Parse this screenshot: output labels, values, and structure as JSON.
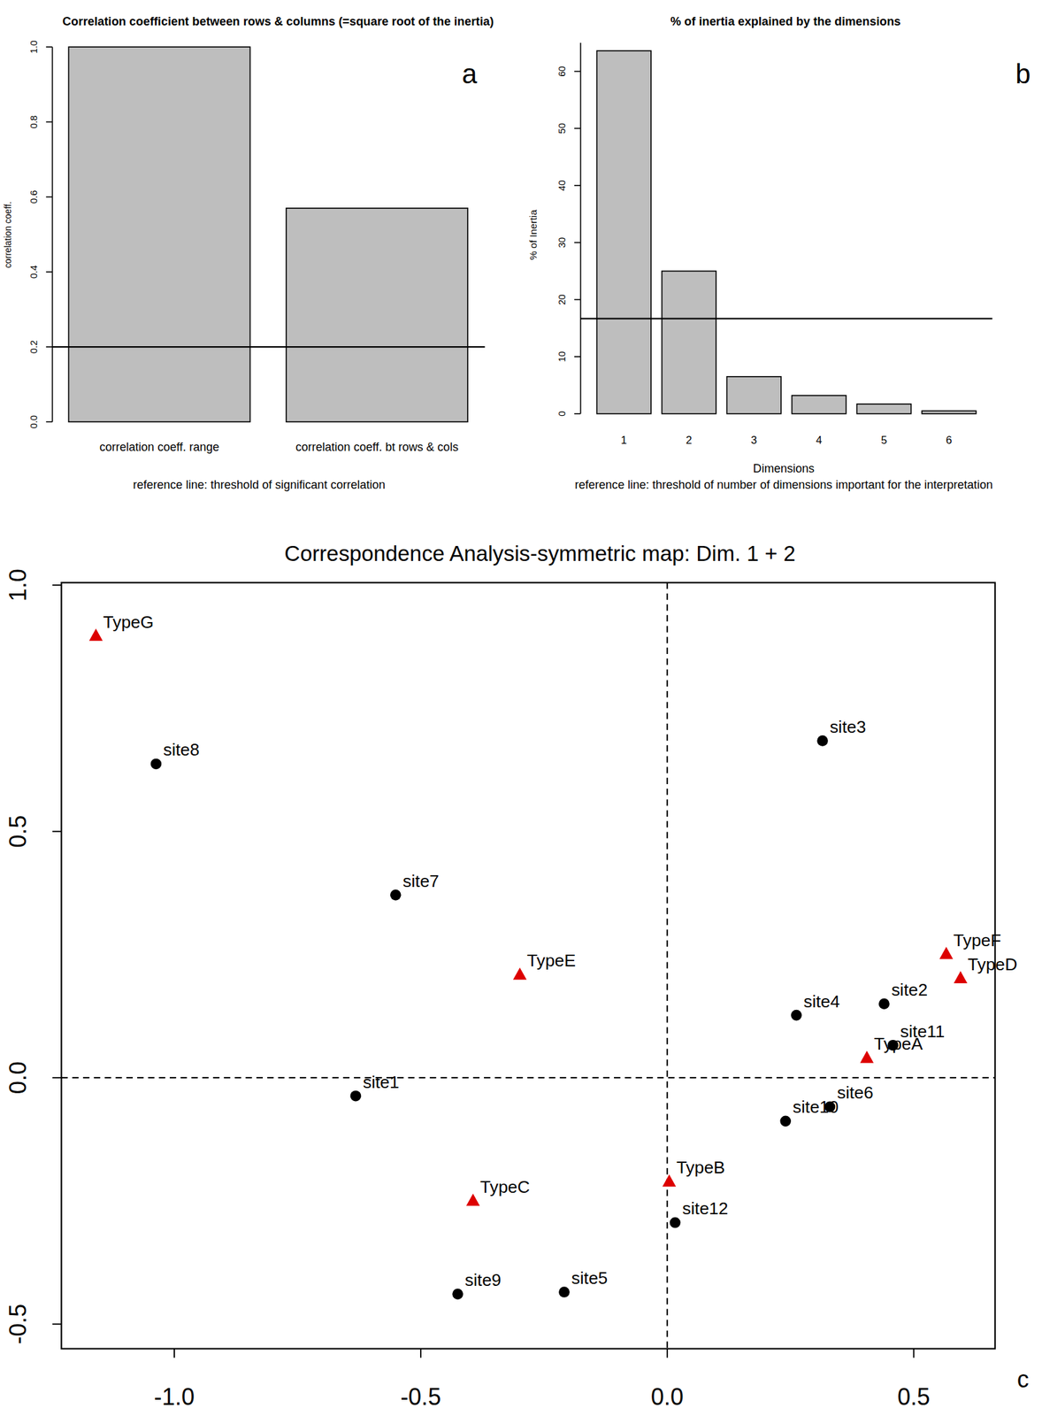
{
  "chart_data": [
    {
      "type": "bar",
      "title": "Correlation coefficient between rows & columns (=square root of the inertia)",
      "y_label": "correlation coeff.",
      "categories": [
        "correlation coeff. range",
        "correlation coeff. bt rows & cols"
      ],
      "values": [
        1.0,
        0.57
      ],
      "color": "#bebebe",
      "ylim": [
        0,
        1.0
      ],
      "yticks": [
        {
          "value": 0,
          "label": "0.0"
        },
        {
          "value": 0.2,
          "label": "0.2"
        },
        {
          "value": 0.4,
          "label": "0.4"
        },
        {
          "value": 0.6,
          "label": "0.6"
        },
        {
          "value": 0.8,
          "label": "0.8"
        },
        {
          "value": 1.0,
          "label": "1.0"
        }
      ],
      "reference_line": 0.2,
      "caption": "reference line: threshold of significant correlation",
      "panel_label": "a"
    },
    {
      "type": "bar",
      "title": "% of inertia explained by the dimensions",
      "y_label": "% of Inertia",
      "x_label": "Dimensions",
      "categories": [
        "1",
        "2",
        "3",
        "4",
        "5",
        "6"
      ],
      "values": [
        63.6,
        25.0,
        6.5,
        3.2,
        1.7,
        0.5
      ],
      "color": "#bebebe",
      "ylim": [
        0,
        65
      ],
      "yticks": [
        0,
        10,
        20,
        30,
        40,
        50,
        60
      ],
      "reference_line": 16.67,
      "caption": "reference line: threshold of number of dimensions important for the interpretation",
      "panel_label": "b"
    },
    {
      "type": "scatter",
      "title": "Correspondence Analysis-symmetric map: Dim. 1 + 2",
      "xlim": [
        -1.229,
        0.665
      ],
      "ylim": [
        -0.55,
        1.005
      ],
      "xticks": [
        {
          "value": -1,
          "label": "-1.0"
        },
        {
          "value": -0.5,
          "label": "-0.5"
        },
        {
          "value": 0,
          "label": "0.0"
        },
        0.5
      ],
      "yticks": [
        -0.5,
        {
          "value": 0,
          "label": "0.0"
        },
        0.5,
        {
          "value": 1,
          "label": "1.0"
        }
      ],
      "hlines": [
        0
      ],
      "vlines": [
        0
      ],
      "series": [
        {
          "color": "#000000",
          "marker": "circle",
          "labels": [
            "site1",
            "site2",
            "site3",
            "site4",
            "site5",
            "site6",
            "site7",
            "site8",
            "site9",
            "site10",
            "site11",
            "site12"
          ],
          "x": [
            -0.632,
            0.44,
            0.315,
            0.262,
            -0.209,
            0.33,
            -0.551,
            -1.037,
            -0.425,
            0.24,
            0.458,
            0.016
          ],
          "values": [
            -0.037,
            0.15,
            0.684,
            0.127,
            -0.435,
            -0.059,
            0.371,
            0.637,
            -0.439,
            -0.088,
            0.066,
            -0.294
          ]
        },
        {
          "color": "#dd0000",
          "marker": "triangle",
          "labels": [
            "TypeA",
            "TypeB",
            "TypeC",
            "TypeD",
            "TypeE",
            "TypeF",
            "TypeG"
          ],
          "x": [
            0.405,
            0.004,
            -0.394,
            0.595,
            -0.299,
            0.566,
            -1.159
          ],
          "values": [
            0.04,
            -0.211,
            -0.25,
            0.202,
            0.209,
            0.251,
            0.897
          ]
        }
      ],
      "panel_label": "c"
    }
  ]
}
